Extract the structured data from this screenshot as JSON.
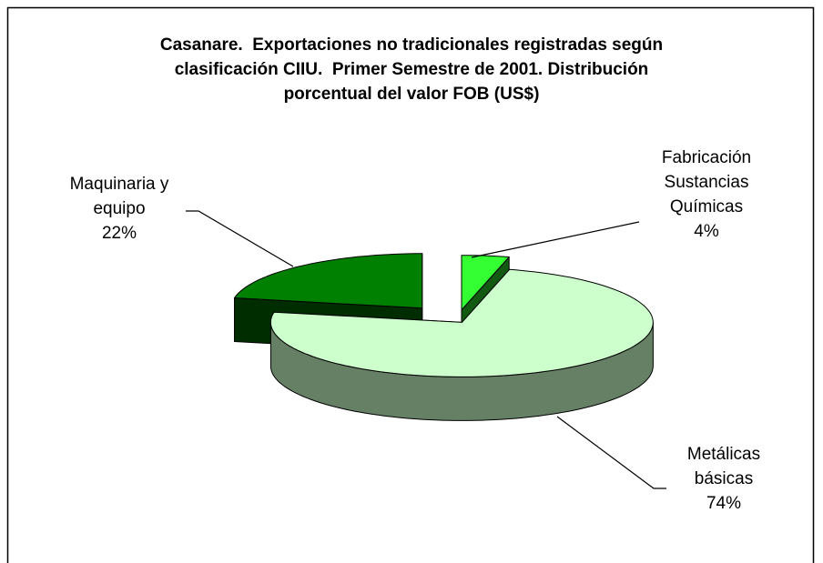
{
  "chart_data": {
    "type": "pie3d",
    "title": "Casanare.  Exportaciones no tradicionales registradas según clasificación CIIU.  Primer Semestre de 2001. Distribución porcentual del valor FOB (US$)",
    "categories": [
      "Fabricación Sustancias Químicas",
      "Metálicas básicas",
      "Maquinaria y equipo"
    ],
    "values": [
      4,
      74,
      22
    ],
    "value_labels": [
      "4%",
      "74%",
      "22%"
    ],
    "colors": [
      "#33ff33",
      "#ccffcc",
      "#008000"
    ],
    "exploded": true
  }
}
